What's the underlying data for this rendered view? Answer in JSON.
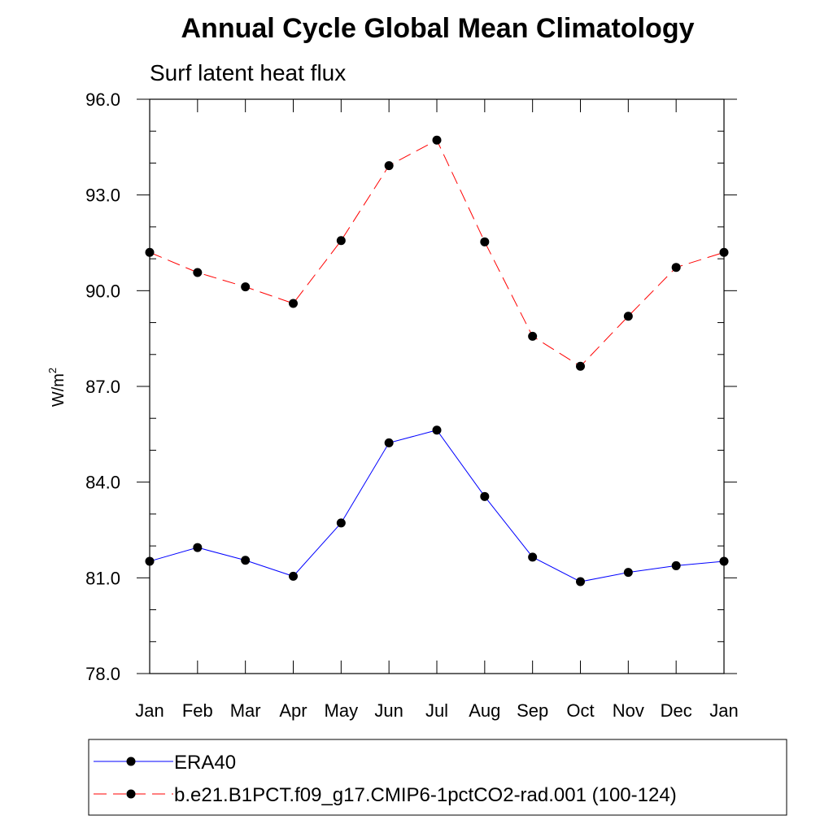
{
  "chart_data": {
    "type": "line",
    "title": "Annual Cycle Global Mean Climatology",
    "subtitle": "Surf latent heat flux",
    "xlabel": "",
    "ylabel_main": "W/m",
    "ylabel_sup": "2",
    "categories": [
      "Jan",
      "Feb",
      "Mar",
      "Apr",
      "May",
      "Jun",
      "Jul",
      "Aug",
      "Sep",
      "Oct",
      "Nov",
      "Dec",
      "Jan"
    ],
    "ylim": [
      78.0,
      96.0
    ],
    "yticks": [
      78.0,
      81.0,
      84.0,
      87.0,
      90.0,
      93.0,
      96.0
    ],
    "ytick_labels": [
      "78.0",
      "81.0",
      "84.0",
      "87.0",
      "90.0",
      "93.0",
      "96.0"
    ],
    "series": [
      {
        "name": "ERA40",
        "color": "#0000ff",
        "dash": "solid",
        "values": [
          81.52,
          81.95,
          81.55,
          81.05,
          82.72,
          85.23,
          85.63,
          83.55,
          81.65,
          80.88,
          81.17,
          81.38,
          81.52
        ]
      },
      {
        "name": "b.e21.B1PCT.f09_g17.CMIP6-1pctCO2-rad.001 (100-124)",
        "color": "#ff0000",
        "dash": "dashed",
        "values": [
          91.2,
          90.57,
          90.12,
          89.6,
          91.57,
          93.92,
          94.72,
          91.53,
          88.57,
          87.63,
          89.2,
          90.73,
          91.2
        ]
      }
    ],
    "legend_position": "bottom",
    "grid": false
  }
}
